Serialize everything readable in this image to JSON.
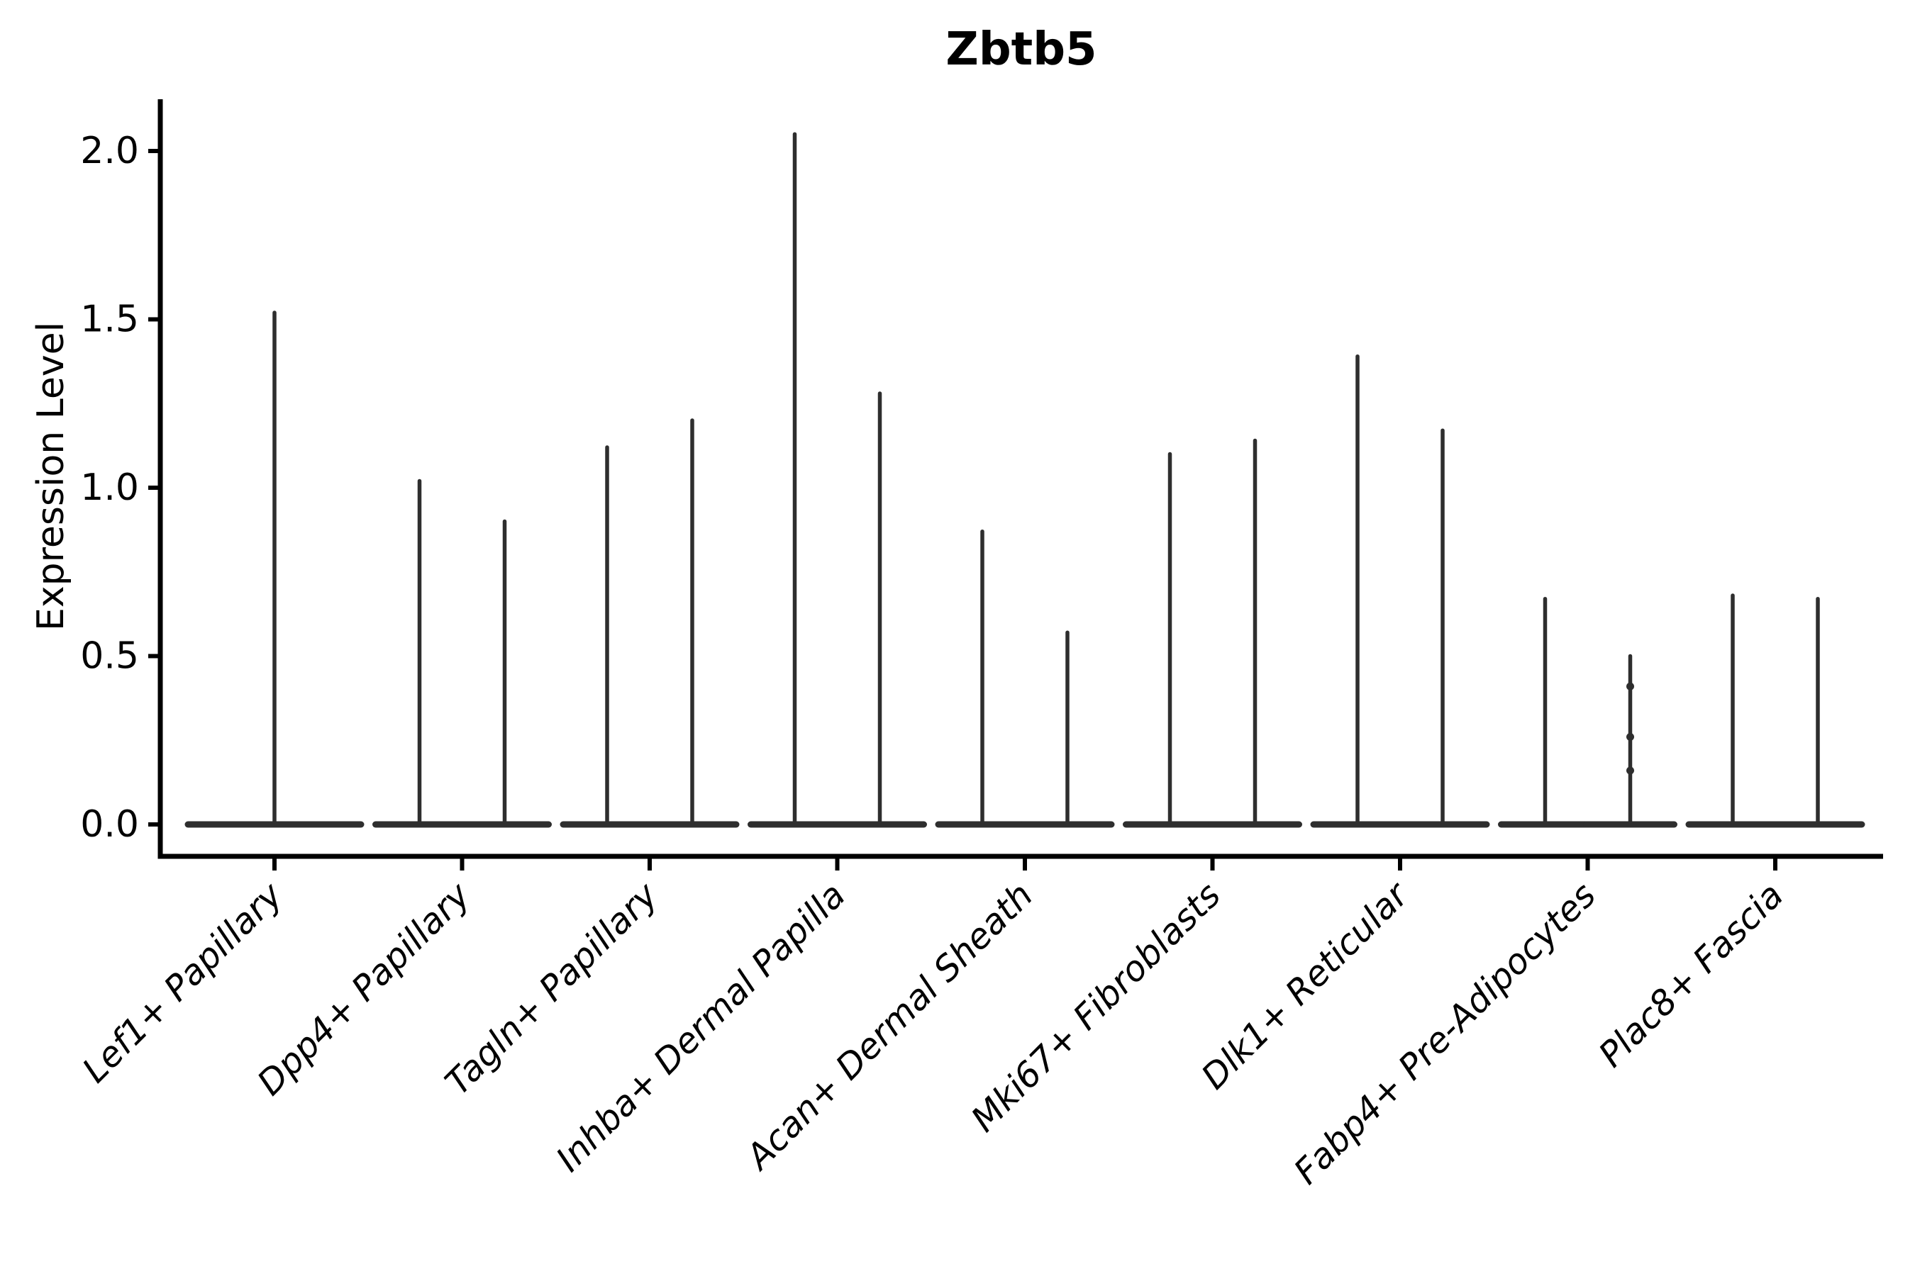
{
  "chart_data": {
    "type": "violin",
    "title": "Zbtb5",
    "ylabel": "Expression Level",
    "xlabel": "",
    "ylim": [
      -0.09,
      2.15
    ],
    "yticks": [
      0,
      0.5,
      1,
      1.5,
      2
    ],
    "ytick_labels": [
      "0.0",
      "0.5",
      "1.0",
      "1.5",
      "2.0"
    ],
    "grid": false,
    "legend": false,
    "categories": [
      "Lef1+ Papillary",
      "Dpp4+ Papillary",
      "Tagln+ Papillary",
      "Inhba+ Dermal Papilla",
      "Acan+ Dermal Sheath",
      "Mki67+ Fibroblasts",
      "Dlk1+ Reticular",
      "Fabp4+ Pre-Adipocytes",
      "Plac8+ Fascia"
    ],
    "violins": [
      {
        "category": "Lef1+ Papillary",
        "violins": [
          {
            "position": "center",
            "baseline_expression": 0,
            "max_expression": 1.52
          }
        ]
      },
      {
        "category": "Dpp4+ Papillary",
        "violins": [
          {
            "position": "left",
            "baseline_expression": 0,
            "max_expression": 1.02
          },
          {
            "position": "right",
            "baseline_expression": 0,
            "max_expression": 0.9
          }
        ]
      },
      {
        "category": "Tagln+ Papillary",
        "violins": [
          {
            "position": "left",
            "baseline_expression": 0,
            "max_expression": 1.12
          },
          {
            "position": "right",
            "baseline_expression": 0,
            "max_expression": 1.2
          }
        ]
      },
      {
        "category": "Inhba+ Dermal Papilla",
        "violins": [
          {
            "position": "left",
            "baseline_expression": 0,
            "max_expression": 2.05
          },
          {
            "position": "right",
            "baseline_expression": 0,
            "max_expression": 1.28
          }
        ]
      },
      {
        "category": "Acan+ Dermal Sheath",
        "violins": [
          {
            "position": "left",
            "baseline_expression": 0,
            "max_expression": 0.87
          },
          {
            "position": "right",
            "baseline_expression": 0,
            "max_expression": 0.57
          }
        ]
      },
      {
        "category": "Mki67+ Fibroblasts",
        "violins": [
          {
            "position": "left",
            "baseline_expression": 0,
            "max_expression": 1.1
          },
          {
            "position": "right",
            "baseline_expression": 0,
            "max_expression": 1.14
          }
        ]
      },
      {
        "category": "Dlk1+ Reticular",
        "violins": [
          {
            "position": "left",
            "baseline_expression": 0,
            "max_expression": 1.39
          },
          {
            "position": "right",
            "baseline_expression": 0,
            "max_expression": 1.17
          }
        ]
      },
      {
        "category": "Fabp4+ Pre-Adipocytes",
        "violins": [
          {
            "position": "left",
            "baseline_expression": 0,
            "max_expression": 0.67
          },
          {
            "position": "right",
            "baseline_expression": 0,
            "max_expression": 0.5,
            "visible_points": [
              0.41,
              0.26,
              0.16
            ]
          }
        ]
      },
      {
        "category": "Plac8+ Fascia",
        "violins": [
          {
            "position": "left",
            "baseline_expression": 0,
            "max_expression": 0.68
          },
          {
            "position": "right",
            "baseline_expression": 0,
            "max_expression": 0.67
          }
        ]
      }
    ],
    "colors": {
      "violin": "#2e2e2e",
      "axis": "#000000",
      "text": "#000000",
      "background": "#ffffff"
    }
  }
}
